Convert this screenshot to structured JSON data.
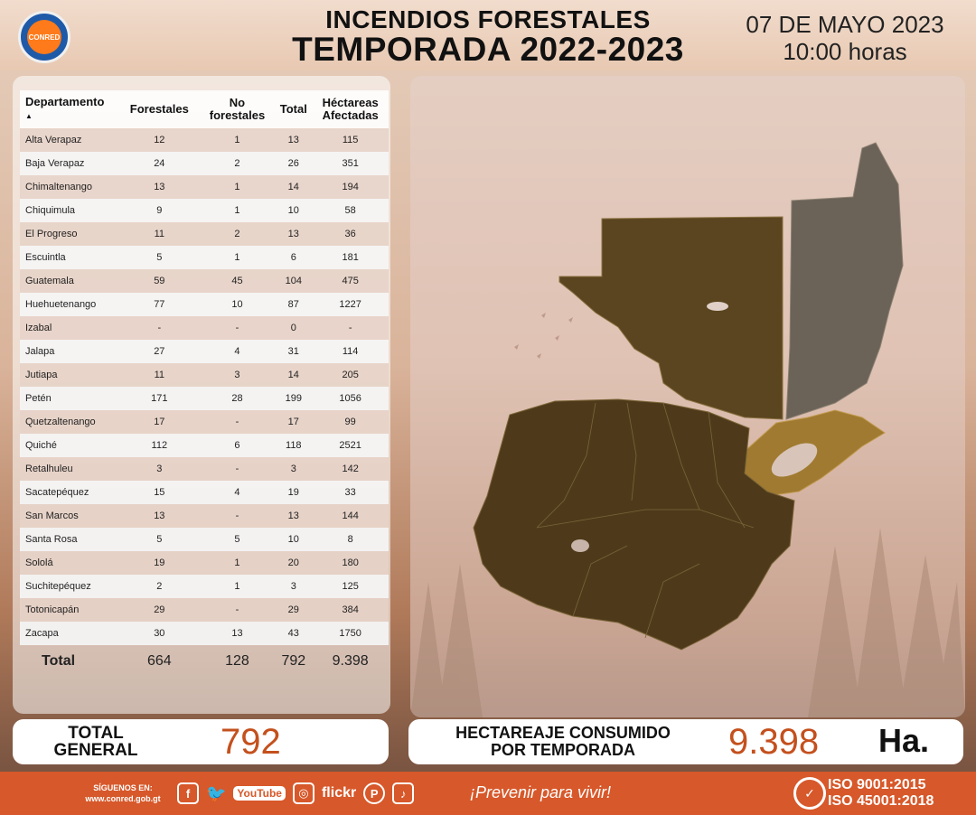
{
  "header": {
    "logo_text": "CONRED",
    "title_line1": "INCENDIOS FORESTALES",
    "title_line2": "TEMPORADA 2022-2023",
    "date": "07 DE MAYO 2023",
    "time": "10:00 horas"
  },
  "table": {
    "headers": {
      "departamento": "Departamento",
      "sort_indicator": "▲",
      "forestales": "Forestales",
      "no_forestales_1": "No",
      "no_forestales_2": "forestales",
      "total": "Total",
      "hectareas_1": "Héctareas",
      "hectareas_2": "Afectadas"
    },
    "rows": [
      {
        "dept": "Alta Verapaz",
        "forestales": "12",
        "no_forestales": "1",
        "total": "13",
        "hectareas": "115"
      },
      {
        "dept": "Baja Verapaz",
        "forestales": "24",
        "no_forestales": "2",
        "total": "26",
        "hectareas": "351"
      },
      {
        "dept": "Chimaltenango",
        "forestales": "13",
        "no_forestales": "1",
        "total": "14",
        "hectareas": "194"
      },
      {
        "dept": "Chiquimula",
        "forestales": "9",
        "no_forestales": "1",
        "total": "10",
        "hectareas": "58"
      },
      {
        "dept": "El Progreso",
        "forestales": "11",
        "no_forestales": "2",
        "total": "13",
        "hectareas": "36"
      },
      {
        "dept": "Escuintla",
        "forestales": "5",
        "no_forestales": "1",
        "total": "6",
        "hectareas": "181"
      },
      {
        "dept": "Guatemala",
        "forestales": "59",
        "no_forestales": "45",
        "total": "104",
        "hectareas": "475"
      },
      {
        "dept": "Huehuetenango",
        "forestales": "77",
        "no_forestales": "10",
        "total": "87",
        "hectareas": "1227"
      },
      {
        "dept": "Izabal",
        "forestales": "-",
        "no_forestales": "-",
        "total": "0",
        "hectareas": "-"
      },
      {
        "dept": "Jalapa",
        "forestales": "27",
        "no_forestales": "4",
        "total": "31",
        "hectareas": "114"
      },
      {
        "dept": "Jutiapa",
        "forestales": "11",
        "no_forestales": "3",
        "total": "14",
        "hectareas": "205"
      },
      {
        "dept": "Petén",
        "forestales": "171",
        "no_forestales": "28",
        "total": "199",
        "hectareas": "1056"
      },
      {
        "dept": "Quetzaltenango",
        "forestales": "17",
        "no_forestales": "-",
        "total": "17",
        "hectareas": "99"
      },
      {
        "dept": "Quiché",
        "forestales": "112",
        "no_forestales": "6",
        "total": "118",
        "hectareas": "2521"
      },
      {
        "dept": "Retalhuleu",
        "forestales": "3",
        "no_forestales": "-",
        "total": "3",
        "hectareas": "142"
      },
      {
        "dept": "Sacatepéquez",
        "forestales": "15",
        "no_forestales": "4",
        "total": "19",
        "hectareas": "33"
      },
      {
        "dept": "San Marcos",
        "forestales": "13",
        "no_forestales": "-",
        "total": "13",
        "hectareas": "144"
      },
      {
        "dept": "Santa Rosa",
        "forestales": "5",
        "no_forestales": "5",
        "total": "10",
        "hectareas": "8"
      },
      {
        "dept": "Sololá",
        "forestales": "19",
        "no_forestales": "1",
        "total": "20",
        "hectareas": "180"
      },
      {
        "dept": "Suchitepéquez",
        "forestales": "2",
        "no_forestales": "1",
        "total": "3",
        "hectareas": "125"
      },
      {
        "dept": "Totonicapán",
        "forestales": "29",
        "no_forestales": "-",
        "total": "29",
        "hectareas": "384"
      },
      {
        "dept": "Zacapa",
        "forestales": "30",
        "no_forestales": "13",
        "total": "43",
        "hectareas": "1750"
      }
    ],
    "total_row": {
      "label": "Total",
      "forestales": "664",
      "no_forestales": "128",
      "total": "792",
      "hectareas": "9.398"
    }
  },
  "summary": {
    "total_general_line1": "TOTAL",
    "total_general_line2": "GENERAL",
    "total_general_value": "792",
    "hectareaje_line1": "HECTAREAJE CONSUMIDO",
    "hectareaje_line2": "POR TEMPORADA",
    "hectareaje_value": "9.398",
    "hectareaje_unit": "Ha."
  },
  "footer": {
    "follow_line1": "SÍGUENOS EN:",
    "follow_line2": "www.conred.gob.gt",
    "social": [
      "facebook-icon",
      "twitter-icon",
      "youtube-icon",
      "instagram-icon",
      "flickr-icon",
      "pinterest-icon",
      "tiktok-icon"
    ],
    "youtube_text": "YouTube",
    "flickr_text": "flickr",
    "slogan": "¡Prevenir para vivir!",
    "iso_line1": "ISO  9001:2015",
    "iso_line2": "ISO 45001:2018"
  },
  "colors": {
    "accent": "#c4501d",
    "footer": "#d7582a",
    "map_dark": "#5a4520",
    "map_peten": "#6b6258",
    "map_izabal": "#a07a30"
  }
}
